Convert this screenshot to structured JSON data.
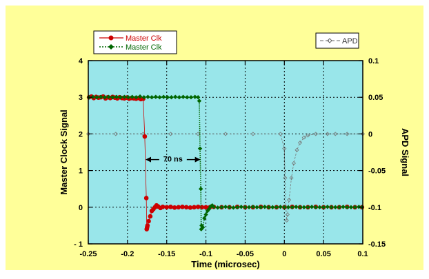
{
  "chart_data": {
    "type": "line",
    "title": "",
    "xlabel": "Time  (microsec)",
    "ylabel": "Master Clock Signal",
    "y2label": "APD Signal",
    "xlim": [
      -0.25,
      0.1
    ],
    "ylim": [
      -1,
      4
    ],
    "y2lim": [
      -0.15,
      0.1
    ],
    "x_ticks": [
      -0.25,
      -0.2,
      -0.15,
      -0.1,
      -0.05,
      0,
      0.05,
      0.1
    ],
    "x_tick_labels": [
      "-0.25",
      "-0.2",
      "-0.15",
      "-0.1",
      "-0.05",
      "0",
      "0.05",
      "0.1"
    ],
    "y_ticks": [
      -1,
      0,
      1,
      2,
      3,
      4
    ],
    "y_tick_labels": [
      "- 1",
      "0",
      "1",
      "2",
      "3",
      "4"
    ],
    "y2_ticks": [
      -0.15,
      -0.1,
      -0.05,
      0,
      0.05,
      0.1
    ],
    "y2_tick_labels": [
      "-0.15",
      "-0.1",
      "-0.05",
      "0",
      "0.05",
      "0.1"
    ],
    "grid": true,
    "legend_left_position": "top-left, outside plot",
    "legend_right_position": "top-right, outside plot",
    "colors": {
      "background": "#ffff99",
      "plot_area": "#99e6ea",
      "grid": "#000000",
      "series_red": "#cc0000",
      "series_green": "#006600",
      "series_apd": "#777777"
    },
    "annotation": {
      "text": "70 ns",
      "y": 1.3,
      "x_start": -0.177,
      "x_end": -0.107
    },
    "series": [
      {
        "name": "Master Clk",
        "axis": "left",
        "color": "#cc0000",
        "marker": "circle",
        "line": "solid",
        "points": [
          [
            -0.249,
            3.0
          ],
          [
            -0.246,
            3.02
          ],
          [
            -0.243,
            2.98
          ],
          [
            -0.24,
            3.01
          ],
          [
            -0.237,
            2.99
          ],
          [
            -0.234,
            3.0
          ],
          [
            -0.231,
            3.02
          ],
          [
            -0.228,
            2.97
          ],
          [
            -0.225,
            3.0
          ],
          [
            -0.222,
            2.98
          ],
          [
            -0.219,
            3.01
          ],
          [
            -0.216,
            2.99
          ],
          [
            -0.213,
            2.97
          ],
          [
            -0.21,
            3.0
          ],
          [
            -0.207,
            2.98
          ],
          [
            -0.204,
            2.97
          ],
          [
            -0.201,
            2.99
          ],
          [
            -0.198,
            2.96
          ],
          [
            -0.195,
            2.98
          ],
          [
            -0.192,
            2.97
          ],
          [
            -0.189,
            2.96
          ],
          [
            -0.186,
            2.98
          ],
          [
            -0.183,
            2.95
          ],
          [
            -0.18,
            2.96
          ],
          [
            -0.178,
            1.93
          ],
          [
            -0.176,
            0.25
          ],
          [
            -0.1755,
            -0.6
          ],
          [
            -0.175,
            -0.55
          ],
          [
            -0.1745,
            -0.5
          ],
          [
            -0.173,
            -0.38
          ],
          [
            -0.171,
            -0.25
          ],
          [
            -0.169,
            -0.1
          ],
          [
            -0.167,
            -0.05
          ],
          [
            -0.165,
            0.0
          ],
          [
            -0.163,
            0.05
          ],
          [
            -0.161,
            0.02
          ],
          [
            -0.158,
            -0.02
          ],
          [
            -0.155,
            0.01
          ],
          [
            -0.15,
            0.0
          ],
          [
            -0.145,
            0.01
          ],
          [
            -0.14,
            -0.01
          ],
          [
            -0.135,
            0.0
          ],
          [
            -0.13,
            0.01
          ],
          [
            -0.125,
            0.0
          ],
          [
            -0.12,
            -0.01
          ],
          [
            -0.115,
            0.0
          ],
          [
            -0.11,
            0.01
          ],
          [
            -0.105,
            0.0
          ],
          [
            -0.1,
            0.0
          ],
          [
            -0.095,
            0.0
          ],
          [
            -0.09,
            0.01
          ],
          [
            -0.08,
            0.0
          ],
          [
            -0.07,
            0.0
          ],
          [
            -0.06,
            0.01
          ],
          [
            -0.05,
            0.0
          ],
          [
            -0.04,
            0.0
          ],
          [
            -0.03,
            0.01
          ],
          [
            -0.02,
            0.0
          ],
          [
            -0.01,
            0.0
          ],
          [
            0.0,
            0.0
          ],
          [
            0.01,
            0.01
          ],
          [
            0.02,
            0.0
          ],
          [
            0.03,
            0.0
          ],
          [
            0.04,
            0.01
          ],
          [
            0.05,
            0.0
          ],
          [
            0.06,
            0.0
          ],
          [
            0.07,
            0.0
          ],
          [
            0.08,
            0.01
          ],
          [
            0.09,
            0.0
          ],
          [
            0.099,
            0.0
          ]
        ]
      },
      {
        "name": "Master Clk",
        "axis": "left",
        "color": "#006600",
        "marker": "diamond",
        "line": "dotted",
        "points": [
          [
            -0.249,
            3.0
          ],
          [
            -0.244,
            3.01
          ],
          [
            -0.239,
            3.0
          ],
          [
            -0.234,
            3.01
          ],
          [
            -0.229,
            3.0
          ],
          [
            -0.224,
            3.01
          ],
          [
            -0.219,
            3.0
          ],
          [
            -0.214,
            3.01
          ],
          [
            -0.209,
            3.0
          ],
          [
            -0.204,
            3.01
          ],
          [
            -0.199,
            3.0
          ],
          [
            -0.194,
            3.01
          ],
          [
            -0.189,
            3.0
          ],
          [
            -0.184,
            3.02
          ],
          [
            -0.179,
            3.0
          ],
          [
            -0.174,
            3.01
          ],
          [
            -0.169,
            3.0
          ],
          [
            -0.164,
            3.01
          ],
          [
            -0.159,
            3.0
          ],
          [
            -0.154,
            3.01
          ],
          [
            -0.149,
            3.0
          ],
          [
            -0.144,
            3.0
          ],
          [
            -0.139,
            3.01
          ],
          [
            -0.134,
            3.0
          ],
          [
            -0.129,
            3.01
          ],
          [
            -0.124,
            3.0
          ],
          [
            -0.119,
            3.0
          ],
          [
            -0.114,
            3.01
          ],
          [
            -0.11,
            3.0
          ],
          [
            -0.1085,
            2.9
          ],
          [
            -0.1075,
            1.6
          ],
          [
            -0.1065,
            0.5
          ],
          [
            -0.106,
            -0.6
          ],
          [
            -0.1055,
            -0.5
          ],
          [
            -0.104,
            -0.55
          ],
          [
            -0.102,
            -0.3
          ],
          [
            -0.1,
            -0.2
          ],
          [
            -0.098,
            -0.1
          ],
          [
            -0.096,
            -0.05
          ],
          [
            -0.094,
            0.02
          ],
          [
            -0.092,
            0.05
          ],
          [
            -0.09,
            0.01
          ],
          [
            -0.085,
            -0.01
          ],
          [
            -0.08,
            0.0
          ],
          [
            -0.075,
            0.01
          ],
          [
            -0.07,
            0.0
          ],
          [
            -0.065,
            -0.01
          ],
          [
            -0.06,
            0.0
          ],
          [
            -0.055,
            0.01
          ],
          [
            -0.05,
            0.0
          ],
          [
            -0.045,
            0.0
          ],
          [
            -0.04,
            0.01
          ],
          [
            -0.035,
            0.0
          ],
          [
            -0.03,
            0.0
          ],
          [
            -0.025,
            0.01
          ],
          [
            -0.02,
            0.0
          ],
          [
            -0.015,
            0.0
          ],
          [
            -0.01,
            0.0
          ],
          [
            -0.005,
            0.01
          ],
          [
            0.0,
            0.0
          ],
          [
            0.005,
            0.0
          ],
          [
            0.01,
            0.0
          ],
          [
            0.015,
            0.01
          ],
          [
            0.02,
            0.0
          ],
          [
            0.025,
            0.0
          ],
          [
            0.03,
            0.0
          ],
          [
            0.035,
            0.01
          ],
          [
            0.04,
            0.0
          ],
          [
            0.045,
            0.0
          ],
          [
            0.05,
            0.0
          ],
          [
            0.055,
            0.01
          ],
          [
            0.06,
            0.0
          ],
          [
            0.065,
            0.0
          ],
          [
            0.07,
            0.0
          ],
          [
            0.075,
            0.01
          ],
          [
            0.08,
            0.0
          ],
          [
            0.085,
            0.0
          ],
          [
            0.09,
            0.0
          ],
          [
            0.095,
            0.01
          ],
          [
            0.099,
            0.0
          ]
        ]
      },
      {
        "name": "APD",
        "axis": "right",
        "color": "#777777",
        "marker": "diamond-open",
        "line": "dashed",
        "points": [
          [
            -0.25,
            0.0
          ],
          [
            -0.215,
            0.0
          ],
          [
            -0.18,
            0.0
          ],
          [
            -0.145,
            0.0
          ],
          [
            -0.11,
            0.0
          ],
          [
            -0.075,
            0.0
          ],
          [
            -0.04,
            0.0
          ],
          [
            -0.005,
            0.0
          ],
          [
            0.0,
            -0.02
          ],
          [
            0.001,
            -0.06
          ],
          [
            0.002,
            -0.1
          ],
          [
            0.003,
            -0.118
          ],
          [
            0.004,
            -0.11
          ],
          [
            0.006,
            -0.09
          ],
          [
            0.009,
            -0.06
          ],
          [
            0.012,
            -0.04
          ],
          [
            0.016,
            -0.022
          ],
          [
            0.02,
            -0.012
          ],
          [
            0.025,
            -0.005
          ],
          [
            0.03,
            -0.002
          ],
          [
            0.04,
            0.0
          ],
          [
            0.055,
            0.0
          ],
          [
            0.065,
            0.0
          ],
          [
            0.08,
            0.0
          ],
          [
            0.1,
            0.0
          ]
        ]
      }
    ]
  }
}
